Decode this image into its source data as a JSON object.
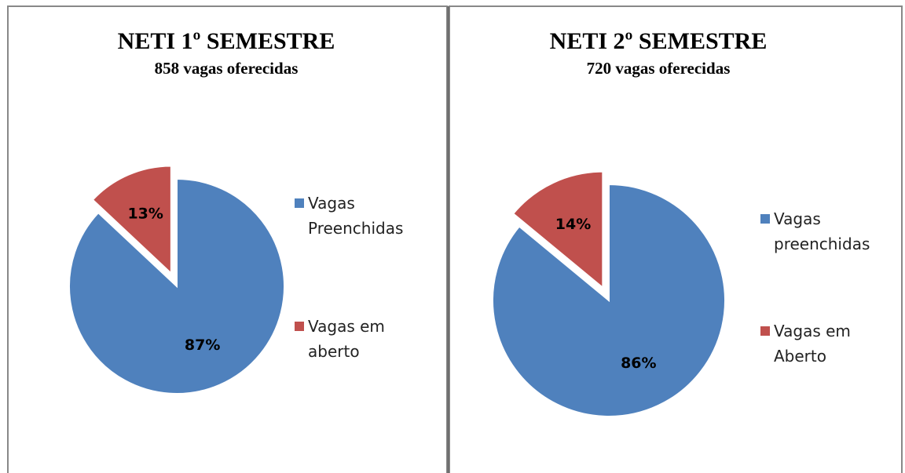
{
  "chart_data": [
    {
      "type": "pie",
      "title": "NETI 1º SEMESTRE",
      "subtitle": "858 vagas oferecidas",
      "categories": [
        "Vagas Preenchidas",
        "Vagas em aberto"
      ],
      "values": [
        87,
        13
      ],
      "value_labels": [
        "87%",
        "13%"
      ],
      "colors": [
        "#4f81bd",
        "#c0504d"
      ],
      "legend": "right"
    },
    {
      "type": "pie",
      "title": "NETI 2º SEMESTRE",
      "subtitle": "720 vagas oferecidas",
      "categories": [
        "Vagas preenchidas",
        "Vagas em Aberto"
      ],
      "values": [
        86,
        14
      ],
      "value_labels": [
        "86%",
        "14%"
      ],
      "colors": [
        "#4f81bd",
        "#c0504d"
      ],
      "legend": "right"
    }
  ]
}
